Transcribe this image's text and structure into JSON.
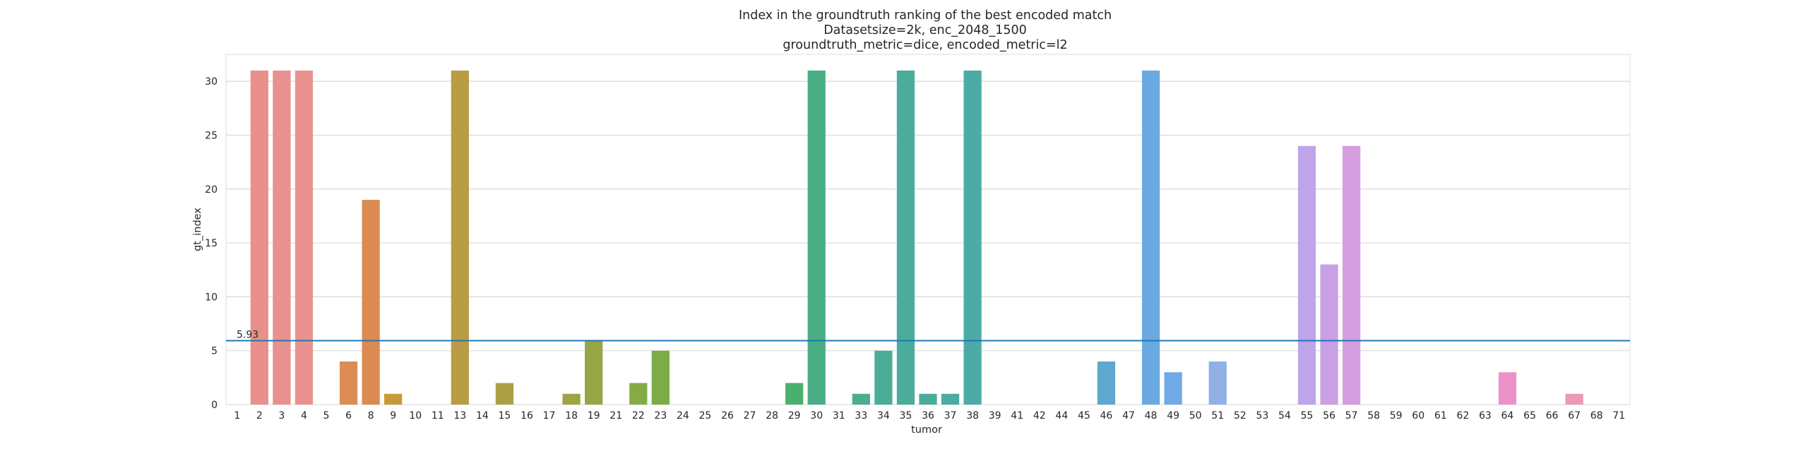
{
  "chart_data": {
    "type": "bar",
    "title_lines": [
      "Index in the groundtruth ranking of the best encoded match",
      "Datasetsize=2k, enc_2048_1500",
      "groundtruth_metric=dice, encoded_metric=l2"
    ],
    "xlabel": "tumor",
    "ylabel": "gt_index",
    "ylim": [
      0,
      32.5
    ],
    "yticks": [
      0,
      5,
      10,
      15,
      20,
      25,
      30
    ],
    "grid": true,
    "categories": [
      "1",
      "2",
      "3",
      "4",
      "5",
      "6",
      "8",
      "9",
      "10",
      "11",
      "13",
      "14",
      "15",
      "16",
      "17",
      "18",
      "19",
      "21",
      "22",
      "23",
      "24",
      "25",
      "26",
      "27",
      "28",
      "29",
      "30",
      "31",
      "33",
      "34",
      "35",
      "36",
      "37",
      "38",
      "39",
      "41",
      "42",
      "44",
      "45",
      "46",
      "47",
      "48",
      "49",
      "50",
      "51",
      "52",
      "53",
      "54",
      "55",
      "56",
      "57",
      "58",
      "59",
      "60",
      "61",
      "62",
      "63",
      "64",
      "65",
      "66",
      "67",
      "68",
      "71"
    ],
    "values": [
      0,
      31,
      31,
      31,
      0,
      4,
      19,
      1,
      0,
      0,
      31,
      0,
      2,
      0,
      0,
      1,
      6,
      0,
      2,
      5,
      0,
      0,
      0,
      0,
      0,
      2,
      31,
      0,
      1,
      5,
      31,
      1,
      1,
      31,
      0,
      0,
      0,
      0,
      0,
      4,
      0,
      31,
      3,
      0,
      4,
      0,
      0,
      0,
      24,
      13,
      24,
      0,
      0,
      0,
      0,
      0,
      0,
      3,
      0,
      0,
      1,
      0,
      0
    ],
    "colors": [
      "#e8888a",
      "#e8908c",
      "#e9918e",
      "#e9928f",
      "#dd8f57",
      "#dc8d55",
      "#db8b52",
      "#c89938",
      "#c29a3d",
      "#bd9c41",
      "#b99c44",
      "#b39f47",
      "#ad9f46",
      "#a7a144",
      "#a2a244",
      "#9ca444",
      "#97a544",
      "#8ba945",
      "#86aa46",
      "#7aac47",
      "#6fae4a",
      "#63b04c",
      "#57b153",
      "#52b25a",
      "#4eb264",
      "#4ab16d",
      "#4aae85",
      "#4aad8c",
      "#4bad92",
      "#4bac97",
      "#4bac9c",
      "#4cab9f",
      "#4caba2",
      "#4daba5",
      "#4fabad",
      "#52aab5",
      "#54a9bc",
      "#57a8c2",
      "#5aa8c8",
      "#5ea8cf",
      "#64a8d8",
      "#6aaae0",
      "#71aae4",
      "#80ade7",
      "#8fb1e6",
      "#9cb3e7",
      "#a7b1e9",
      "#b4abeb",
      "#bea5ea",
      "#c9a0e6",
      "#d59ee1",
      "#de9cdb",
      "#e59ad1",
      "#ea98c7",
      "#ec97bd",
      "#ed96b3",
      "#ee95ab",
      "#ec92c9",
      "#ec94c4",
      "#ed96bf",
      "#ee98b8",
      "#ee99b1",
      "#ee9aa9"
    ],
    "mean_line": {
      "value": 5.93,
      "label": "5.93",
      "color": "#1f77b4"
    }
  }
}
